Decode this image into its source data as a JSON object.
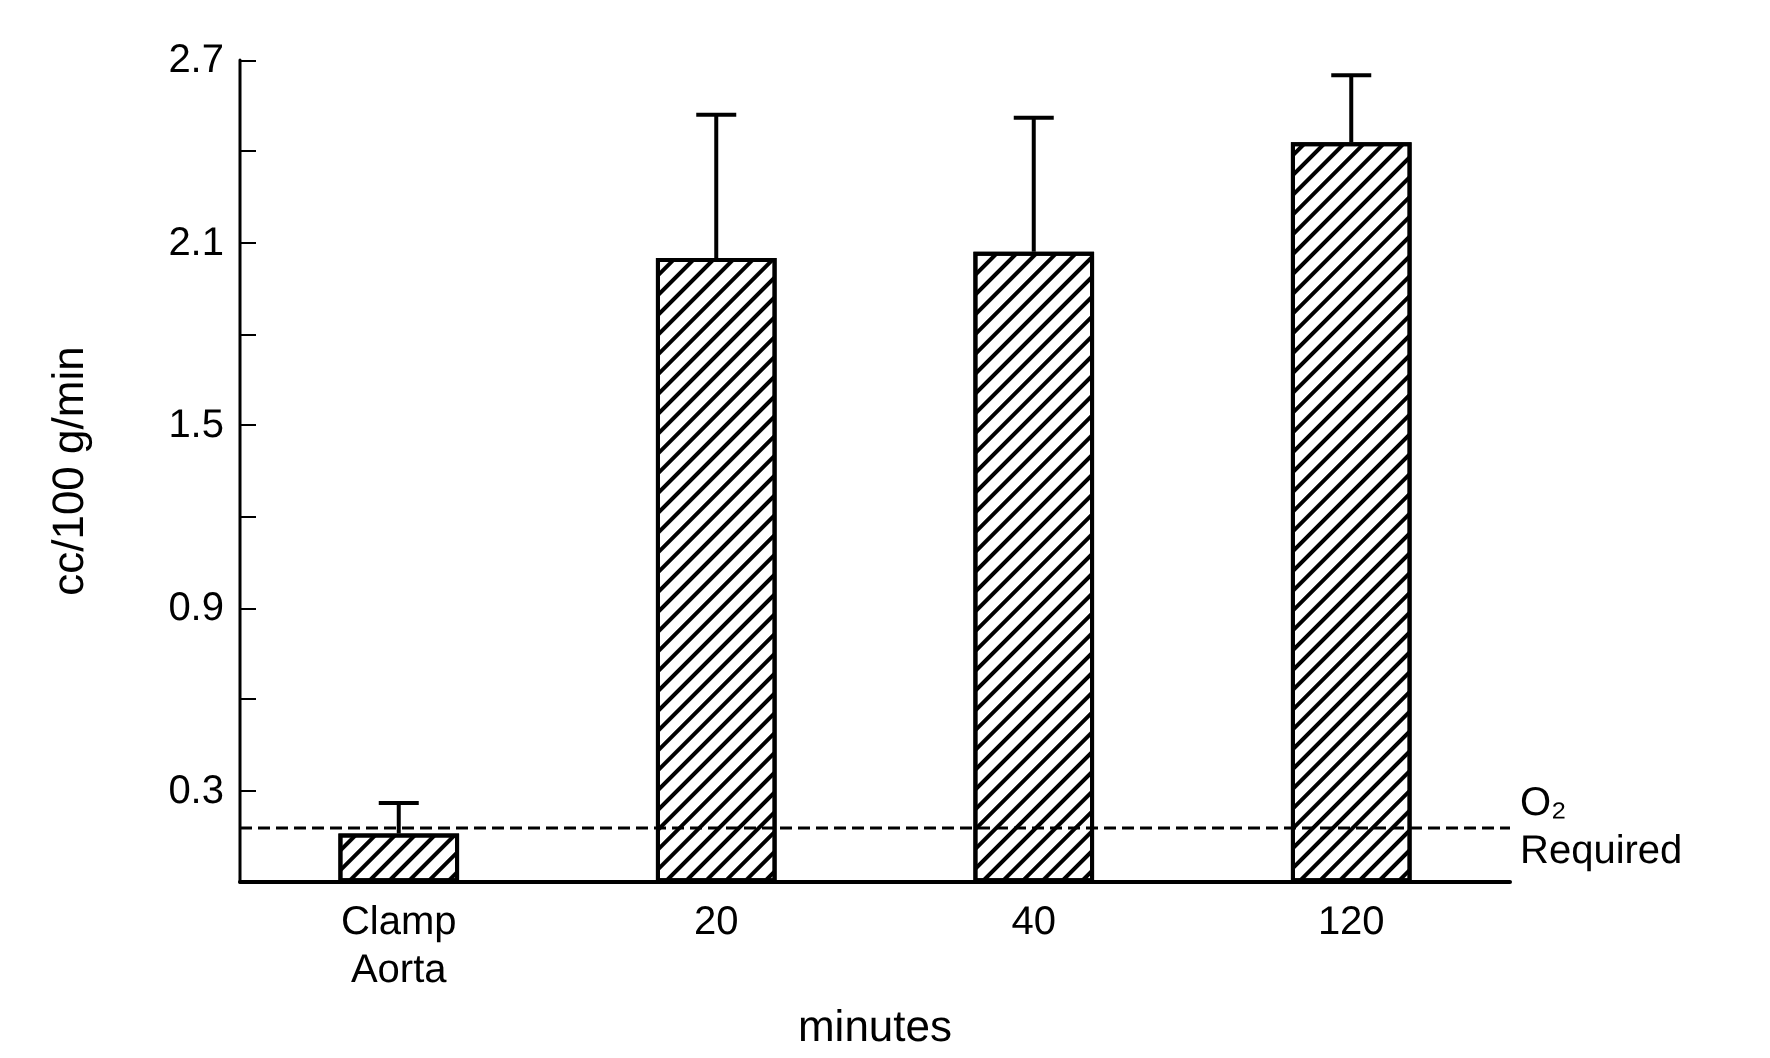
{
  "chart_data": {
    "type": "bar",
    "categories": [
      "Clamp\nAorta",
      "20",
      "40",
      "120"
    ],
    "values": [
      0.16,
      2.05,
      2.07,
      2.43
    ],
    "errors": [
      [
        0.16,
        0.26
      ],
      [
        2.05,
        2.52
      ],
      [
        2.07,
        2.51
      ],
      [
        2.43,
        2.65
      ]
    ],
    "color": "#ffffff",
    "ylabel": "cc/100 g/min",
    "xlabel": "minutes",
    "ylim": [
      0,
      2.7
    ],
    "yticks": [
      0.3,
      {
        "value": 0.6,
        "label": null
      },
      0.9,
      {
        "value": 1.2,
        "label": null
      },
      1.5,
      {
        "value": 1.8,
        "label": null
      },
      2.1,
      {
        "value": 2.4,
        "label": null
      },
      2.7
    ],
    "ref_lines": [
      {
        "axis": "y",
        "value": 0.18,
        "label": "O₂\nRequired",
        "line_style": "dashed",
        "color": "#000000"
      }
    ],
    "grid": false
  }
}
